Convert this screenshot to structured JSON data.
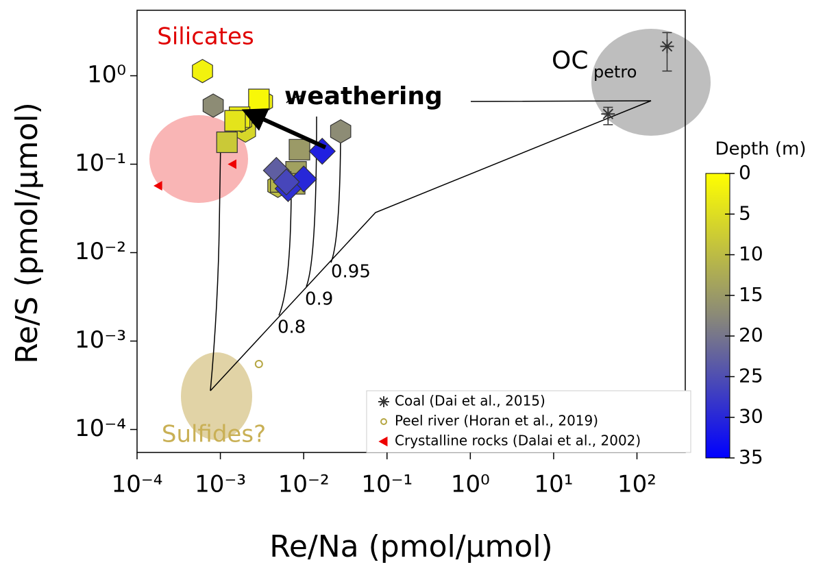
{
  "chart_data": {
    "type": "scatter",
    "xlabel": "Re/Na (pmol/µmol)",
    "ylabel": "Re/S (pmol/µmol)",
    "xscale": "log",
    "yscale": "log",
    "xlim": [
      0.0001,
      380
    ],
    "ylim": [
      5.5e-05,
      5.5
    ],
    "xticks": [
      {
        "value": 0.0001,
        "label": "10⁻⁴"
      },
      {
        "value": 0.001,
        "label": "10⁻³"
      },
      {
        "value": 0.01,
        "label": "10⁻²"
      },
      {
        "value": 0.1,
        "label": "10⁻¹"
      },
      {
        "value": 1,
        "label": "10⁰"
      },
      {
        "value": 10,
        "label": "10¹"
      },
      {
        "value": 100,
        "label": "10²"
      }
    ],
    "yticks": [
      {
        "value": 0.0001,
        "label": "10⁻⁴"
      },
      {
        "value": 0.001,
        "label": "10⁻³"
      },
      {
        "value": 0.01,
        "label": "10⁻²"
      },
      {
        "value": 0.1,
        "label": "10⁻¹"
      },
      {
        "value": 1,
        "label": "10⁰"
      }
    ],
    "colorbar": {
      "label": "Depth (m)",
      "lim": [
        0,
        35
      ],
      "ticks": [
        0,
        5,
        10,
        15,
        20,
        25,
        30,
        35
      ],
      "colors": [
        "#ffff00",
        "#8a8978",
        "#0000ff"
      ]
    },
    "series": [
      {
        "marker": "hexagon",
        "x": [
          0.00061,
          0.00082,
          0.0278,
          0.0032,
          0.002,
          0.0018,
          0.0049
        ],
        "y": [
          1.13,
          0.46,
          0.235,
          0.51,
          0.24,
          0.31,
          0.057
        ],
        "depth": [
          2,
          17,
          17,
          3,
          6,
          4,
          10
        ]
      },
      {
        "marker": "square",
        "x": [
          0.0029,
          0.0017,
          0.0015,
          0.0012,
          0.0089,
          0.0081,
          0.0053,
          0.0078
        ],
        "y": [
          0.54,
          0.34,
          0.31,
          0.177,
          0.146,
          0.082,
          0.063,
          0.06
        ],
        "depth": [
          1,
          3,
          4,
          8,
          15,
          14,
          11,
          12
        ]
      },
      {
        "marker": "diamond",
        "x": [
          0.0167,
          0.0047,
          0.01,
          0.0065,
          0.0062
        ],
        "y": [
          0.14,
          0.085,
          0.068,
          0.053,
          0.063
        ],
        "depth": [
          31,
          23,
          30,
          29,
          26
        ]
      },
      {
        "name": "Coal (Dai et al., 2015)",
        "marker": "star",
        "color": "#333333",
        "x": [
          45,
          230
        ],
        "y": [
          0.37,
          2.15
        ],
        "y_low": [
          0.28,
          1.13
        ],
        "y_high": [
          0.44,
          3.08
        ]
      },
      {
        "name": "Peel river (Horan et al., 2019)",
        "marker": "circle",
        "color": "#b5a642",
        "x": [
          0.0029
        ],
        "y": [
          0.00055
        ]
      },
      {
        "name": "Crystalline rocks (Dalai et al., 2002)",
        "marker": "triangle-left",
        "color": "#ee0000",
        "x": [
          0.00018,
          0.0014
        ],
        "y": [
          0.057,
          0.1
        ]
      }
    ],
    "annotations": {
      "silicates": "Silicates",
      "sulfides": "Sulfides?",
      "oc": "OC",
      "oc_sub": "petro",
      "weathering": "weathering",
      "f80": "0.8",
      "f90": "0.9",
      "f95": "0.95"
    }
  }
}
